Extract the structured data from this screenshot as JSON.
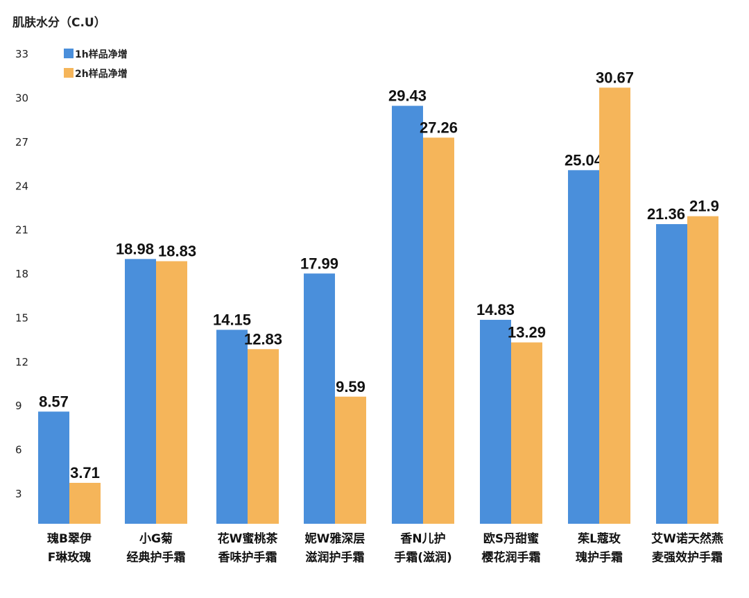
{
  "chart_data": {
    "type": "bar",
    "ylabel": "肌肤水分（C.U）",
    "yticks": [
      3,
      6,
      9,
      12,
      15,
      18,
      21,
      24,
      27,
      30,
      33
    ],
    "ylim": [
      0,
      33
    ],
    "grid": false,
    "legend_position": "top-left",
    "categories": [
      [
        "瑰B翠伊",
        "F琳玫瑰"
      ],
      [
        "小G菊",
        "经典护手霜"
      ],
      [
        "花W蜜桃茶",
        "香味护手霜"
      ],
      [
        "妮W雅深层",
        "滋润护手霜"
      ],
      [
        "香N儿护",
        "手霜(滋润)"
      ],
      [
        "欧S丹甜蜜",
        "樱花润手霜"
      ],
      [
        "茱L蔻玫",
        "瑰护手霜"
      ],
      [
        "艾W诺天然燕",
        "麦强效护手霜"
      ]
    ],
    "series": [
      {
        "name": "1h样品净增",
        "color": "#4a8fdb",
        "values": [
          8.57,
          18.98,
          14.15,
          17.99,
          29.43,
          14.83,
          25.04,
          21.36
        ],
        "labels": [
          "8.57",
          "18.98",
          "14.15",
          "17.99",
          "29.43",
          "14.83",
          "25.04",
          "21.36"
        ]
      },
      {
        "name": "2h样品净增",
        "color": "#f5b55a",
        "values": [
          3.71,
          18.83,
          12.83,
          9.59,
          27.26,
          13.29,
          30.67,
          21.9
        ],
        "labels": [
          "3.71",
          "18.83",
          "12.83",
          "9.59",
          "27.26",
          "13.29",
          "30.67",
          "21.9"
        ]
      }
    ]
  }
}
